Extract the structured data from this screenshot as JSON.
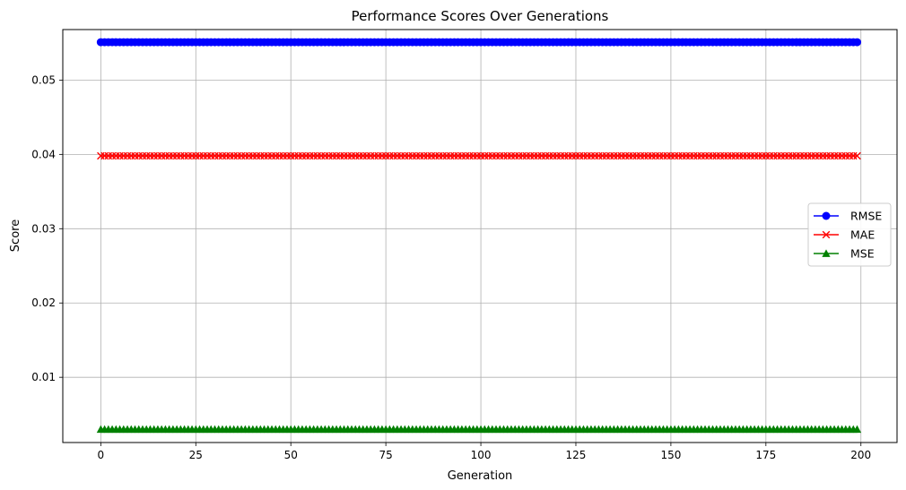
{
  "chart_data": {
    "type": "line",
    "title": "Performance Scores Over Generations",
    "xlabel": "Generation",
    "ylabel": "Score",
    "xlim": [
      -10,
      209.5
    ],
    "ylim": [
      0.00122,
      0.0568
    ],
    "x_ticks": [
      0,
      25,
      50,
      75,
      100,
      125,
      150,
      175,
      200
    ],
    "x_tick_labels": [
      "0",
      "25",
      "50",
      "75",
      "100",
      "125",
      "150",
      "175",
      "200"
    ],
    "y_ticks": [
      0.01,
      0.02,
      0.03,
      0.04,
      0.05
    ],
    "y_tick_labels": [
      "0.01",
      "0.02",
      "0.03",
      "0.04",
      "0.05"
    ],
    "x": {
      "start": 0,
      "end": 199,
      "step": 1
    },
    "grid": true,
    "legend_position": "center-right",
    "series": [
      {
        "name": "RMSE",
        "value": 0.0551,
        "color": "#0000ff",
        "marker": "circle"
      },
      {
        "name": "MAE",
        "value": 0.0398,
        "color": "#ff0000",
        "marker": "x"
      },
      {
        "name": "MSE",
        "value": 0.003,
        "color": "#008000",
        "marker": "triangle"
      }
    ]
  }
}
